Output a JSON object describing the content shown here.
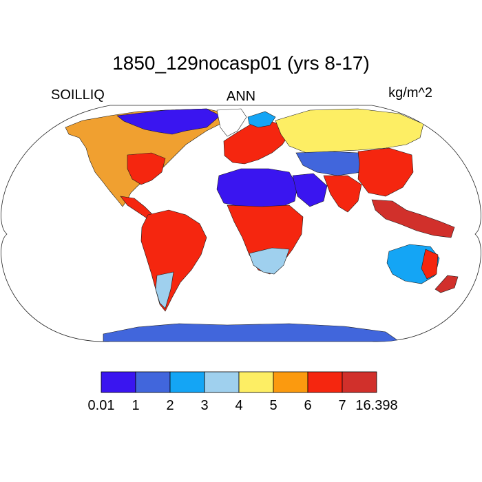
{
  "title": "1850_129nocasp01 (yrs 8-17)",
  "left_label": "SOILLIQ",
  "center_label": "ANN",
  "right_label": "kg/m^2",
  "colorbar": {
    "colors": [
      "#3a15f0",
      "#4166dc",
      "#14a5f5",
      "#9fd0ee",
      "#fdee64",
      "#fb9a0f",
      "#f5260f",
      "#d1302b"
    ],
    "tick_labels": [
      "0.01",
      "1",
      "2",
      "3",
      "4",
      "5",
      "6",
      "7",
      "16.398"
    ]
  },
  "chart_data": {
    "type": "heatmap",
    "variable": "SOILLIQ",
    "period": "ANN",
    "units": "kg/m^2",
    "levels": [
      0.01,
      1,
      2,
      3,
      4,
      5,
      6,
      7,
      16.398
    ]
  }
}
